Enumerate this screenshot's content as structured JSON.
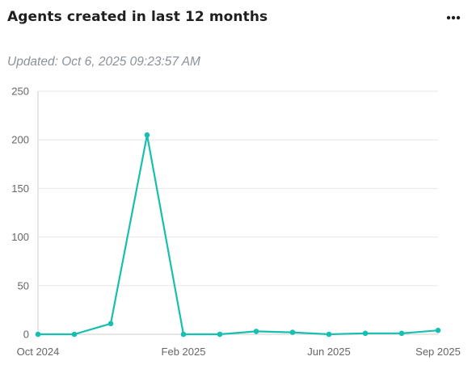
{
  "header": {
    "title": "Agents created in last 12 months",
    "more_icon": "more-horizontal-icon",
    "updated": "Updated: Oct 6, 2025 09:23:57 AM"
  },
  "colors": {
    "line": "#17bfae",
    "grid": "#e6e6e6",
    "axis": "#cccccc"
  },
  "chart_data": {
    "type": "line",
    "title": "Agents created in last 12 months",
    "xlabel": "",
    "ylabel": "",
    "ylim": [
      0,
      250
    ],
    "yticks": [
      0,
      50,
      100,
      150,
      200,
      250
    ],
    "xtick_labels": [
      "Oct 2024",
      "Feb 2025",
      "Jun 2025",
      "Sep 2025"
    ],
    "xtick_indices": [
      0,
      4,
      8,
      11
    ],
    "grid": true,
    "legend": "none",
    "series": [
      {
        "values": [
          0,
          0,
          11,
          205,
          0,
          0,
          3,
          2,
          0,
          1,
          1,
          4
        ]
      }
    ]
  }
}
